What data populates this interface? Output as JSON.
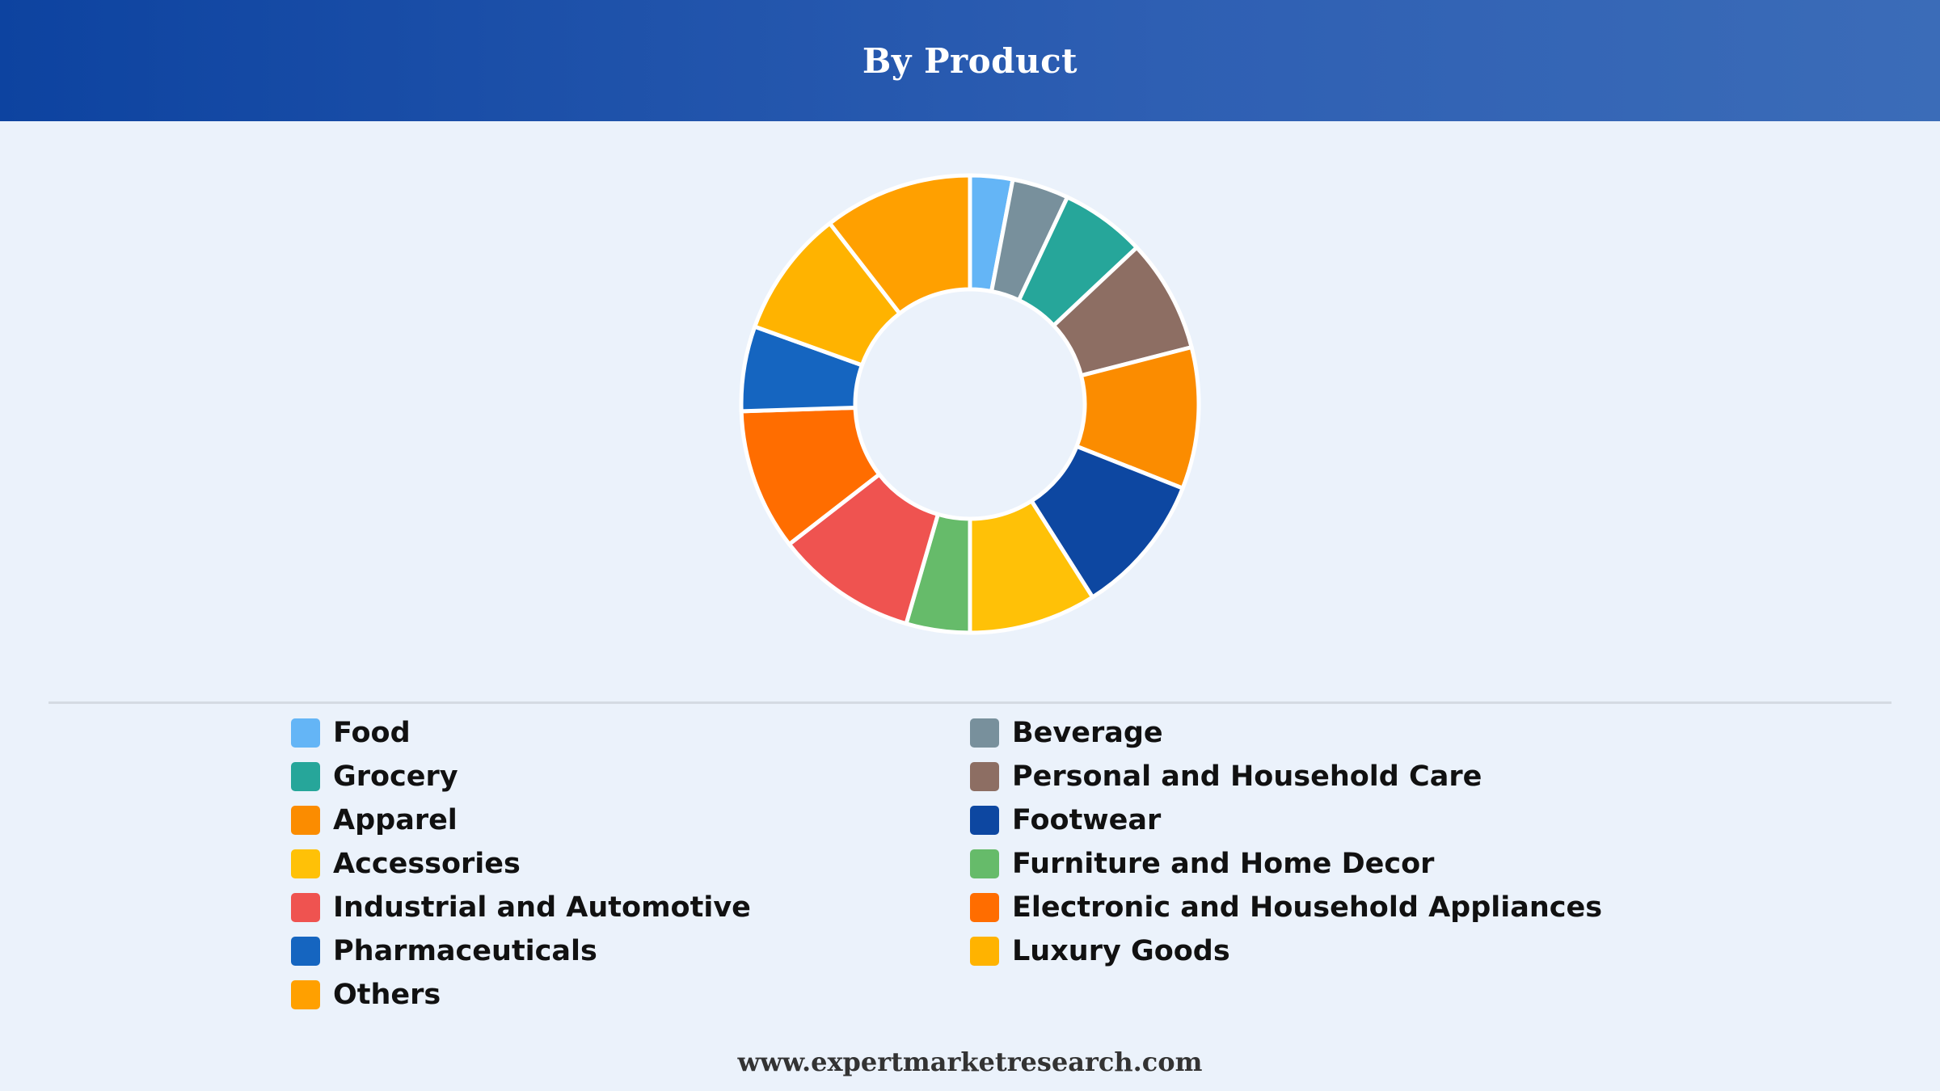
{
  "header": {
    "title": "By Product"
  },
  "chart_data": {
    "type": "donut",
    "title": "By Product",
    "legend_position": "bottom",
    "series": [
      {
        "name": "Food",
        "value": 3,
        "color": "#64b5f6"
      },
      {
        "name": "Beverage",
        "value": 4,
        "color": "#78909c"
      },
      {
        "name": "Grocery",
        "value": 6,
        "color": "#26a69a"
      },
      {
        "name": "Personal and Household Care",
        "value": 8,
        "color": "#8d6e63"
      },
      {
        "name": "Apparel",
        "value": 10,
        "color": "#fb8c00"
      },
      {
        "name": "Footwear",
        "value": 10,
        "color": "#0d47a1"
      },
      {
        "name": "Accessories",
        "value": 9,
        "color": "#ffc107"
      },
      {
        "name": "Furniture and Home Decor",
        "value": 4.5,
        "color": "#66bb6a"
      },
      {
        "name": "Industrial and Automotive",
        "value": 10,
        "color": "#ef5350"
      },
      {
        "name": "Electronic and Household Appliances",
        "value": 10,
        "color": "#ff6d00"
      },
      {
        "name": "Pharmaceuticals",
        "value": 6,
        "color": "#1565c0"
      },
      {
        "name": "Luxury Goods",
        "value": 9,
        "color": "#ffb300"
      },
      {
        "name": "Others",
        "value": 10.5,
        "color": "#ffa000"
      }
    ]
  },
  "footer": {
    "url": "www.expertmarketresearch.com"
  }
}
